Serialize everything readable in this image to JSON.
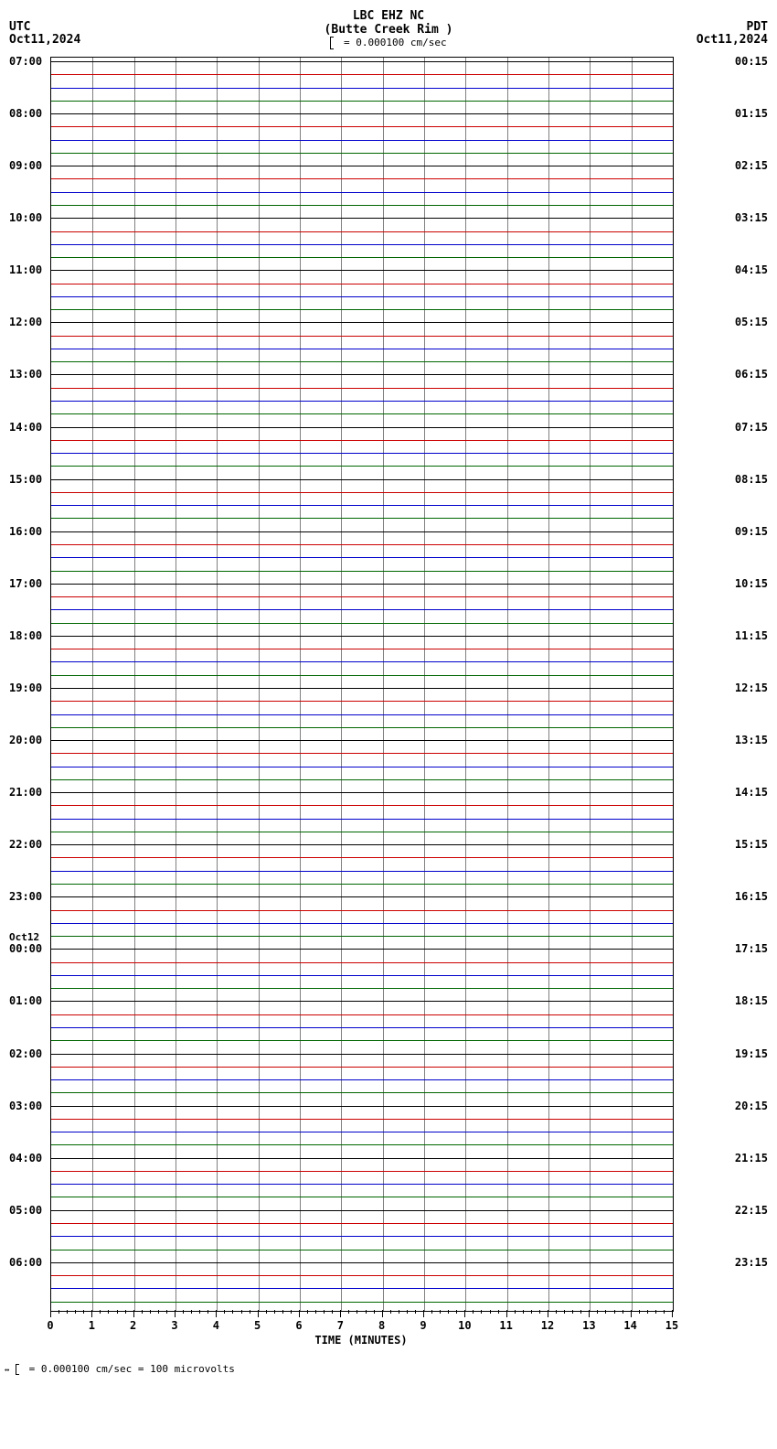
{
  "station": "LBC EHZ NC",
  "station_name": "(Butte Creek Rim )",
  "scale_text": "= 0.000100 cm/sec",
  "tz_left": "UTC",
  "date_left": "Oct11,2024",
  "tz_right": "PDT",
  "date_right": "Oct11,2024",
  "xaxis_title": "TIME (MINUTES)",
  "footer_text": "= 0.000100 cm/sec =    100 microvolts",
  "plot": {
    "background": "#ffffff",
    "grid_color": "#808080",
    "n_minutes": 15,
    "xticks": [
      0,
      1,
      2,
      3,
      4,
      5,
      6,
      7,
      8,
      9,
      10,
      11,
      12,
      13,
      14,
      15
    ],
    "n_traces": 96,
    "trace_colors_cycle": [
      "#000000",
      "#cc0000",
      "#0000cc",
      "#006600"
    ],
    "trace_spacing": 14.27,
    "left_labels": [
      {
        "i": 0,
        "t": "07:00"
      },
      {
        "i": 4,
        "t": "08:00"
      },
      {
        "i": 8,
        "t": "09:00"
      },
      {
        "i": 12,
        "t": "10:00"
      },
      {
        "i": 16,
        "t": "11:00"
      },
      {
        "i": 20,
        "t": "12:00"
      },
      {
        "i": 24,
        "t": "13:00"
      },
      {
        "i": 28,
        "t": "14:00"
      },
      {
        "i": 32,
        "t": "15:00"
      },
      {
        "i": 36,
        "t": "16:00"
      },
      {
        "i": 40,
        "t": "17:00"
      },
      {
        "i": 44,
        "t": "18:00"
      },
      {
        "i": 48,
        "t": "19:00"
      },
      {
        "i": 52,
        "t": "20:00"
      },
      {
        "i": 56,
        "t": "21:00"
      },
      {
        "i": 60,
        "t": "22:00"
      },
      {
        "i": 64,
        "t": "23:00"
      },
      {
        "i": 68,
        "t": "00:00",
        "day": "Oct12"
      },
      {
        "i": 72,
        "t": "01:00"
      },
      {
        "i": 76,
        "t": "02:00"
      },
      {
        "i": 80,
        "t": "03:00"
      },
      {
        "i": 84,
        "t": "04:00"
      },
      {
        "i": 88,
        "t": "05:00"
      },
      {
        "i": 92,
        "t": "06:00"
      }
    ],
    "right_labels": [
      {
        "i": 0,
        "t": "00:15"
      },
      {
        "i": 4,
        "t": "01:15"
      },
      {
        "i": 8,
        "t": "02:15"
      },
      {
        "i": 12,
        "t": "03:15"
      },
      {
        "i": 16,
        "t": "04:15"
      },
      {
        "i": 20,
        "t": "05:15"
      },
      {
        "i": 24,
        "t": "06:15"
      },
      {
        "i": 28,
        "t": "07:15"
      },
      {
        "i": 32,
        "t": "08:15"
      },
      {
        "i": 36,
        "t": "09:15"
      },
      {
        "i": 40,
        "t": "10:15"
      },
      {
        "i": 44,
        "t": "11:15"
      },
      {
        "i": 48,
        "t": "12:15"
      },
      {
        "i": 52,
        "t": "13:15"
      },
      {
        "i": 56,
        "t": "14:15"
      },
      {
        "i": 60,
        "t": "15:15"
      },
      {
        "i": 64,
        "t": "16:15"
      },
      {
        "i": 68,
        "t": "17:15"
      },
      {
        "i": 72,
        "t": "18:15"
      },
      {
        "i": 76,
        "t": "19:15"
      },
      {
        "i": 80,
        "t": "20:15"
      },
      {
        "i": 84,
        "t": "21:15"
      },
      {
        "i": 88,
        "t": "22:15"
      },
      {
        "i": 92,
        "t": "23:15"
      }
    ]
  }
}
